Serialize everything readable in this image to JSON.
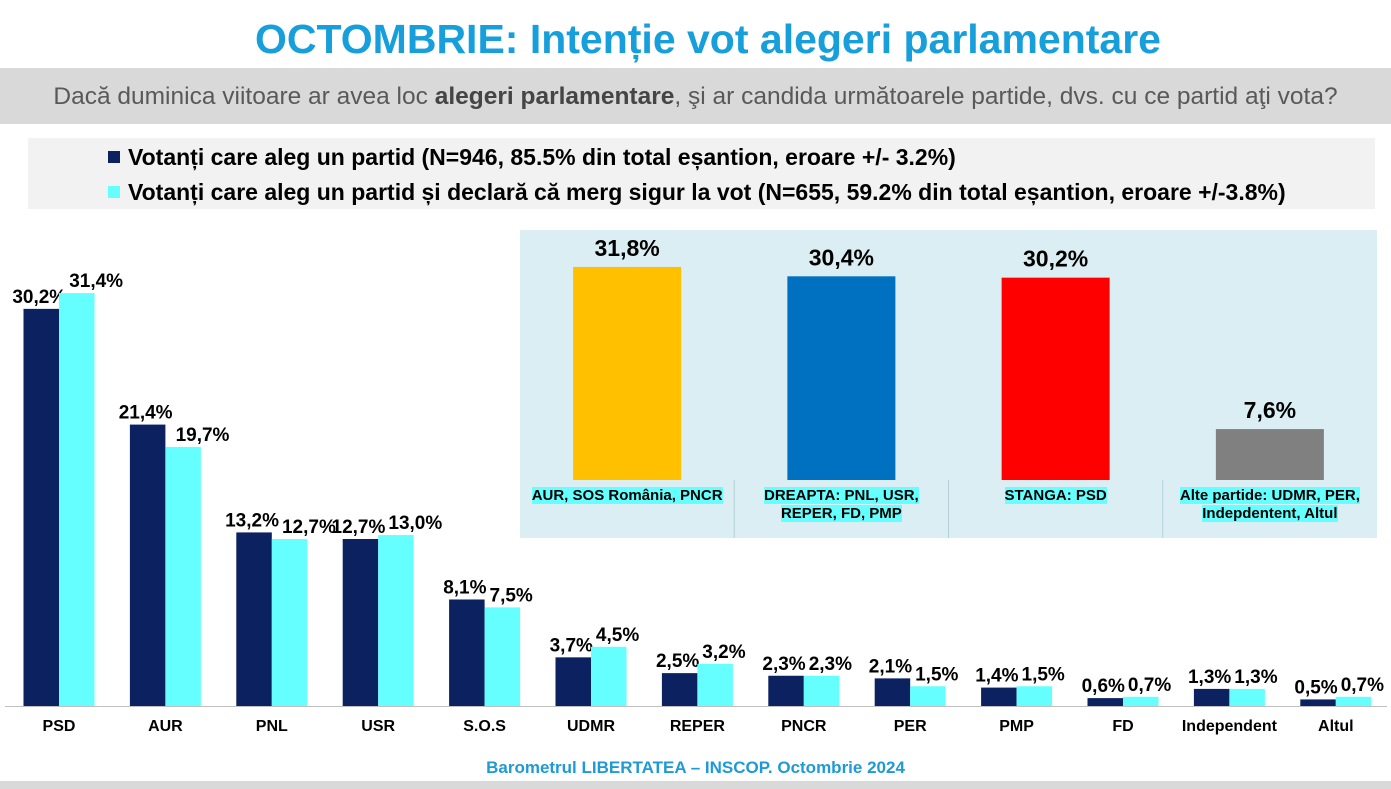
{
  "title": "OCTOMBRIE: Intenție vot alegeri parlamentare",
  "question": {
    "before": "Dacă duminica viitoare ar avea loc ",
    "bold": "alegeri parlamentare",
    "after": ", şi ar candida următoarele partide, dvs. cu ce partid aţi vota?"
  },
  "footer": "Barometrul LIBERTATEA – INSCOP. Octombrie 2024",
  "colors": {
    "title": "#169fdb",
    "footer": "#1f9ad6",
    "highlight": "#66ffff"
  },
  "chart_data": [
    {
      "type": "bar",
      "categories": [
        "PSD",
        "AUR",
        "PNL",
        "USR",
        "S.O.S",
        "UDMR",
        "REPER",
        "PNCR",
        "PER",
        "PMP",
        "FD",
        "Independent",
        "Altul"
      ],
      "series": [
        {
          "name": "Votanți care aleg un partid (N=946, 85.5% din total eșantion, eroare +/- 3.2%)",
          "color": "#0b2160",
          "values": [
            30.2,
            21.4,
            13.2,
            12.7,
            8.1,
            3.7,
            2.5,
            2.3,
            2.1,
            1.4,
            0.6,
            1.3,
            0.5
          ],
          "labels": [
            "30,2%",
            "21,4%",
            "13,2%",
            "12,7%",
            "8,1%",
            "3,7%",
            "2,5%",
            "2,3%",
            "2,1%",
            "1,4%",
            "0,6%",
            "1,3%",
            "0,5%"
          ]
        },
        {
          "name": "Votanți care aleg un partid și declară că merg sigur la vot (N=655, 59.2% din total eșantion, eroare +/-3.8%)",
          "color": "#66ffff",
          "values": [
            31.4,
            19.7,
            12.7,
            13.0,
            7.5,
            4.5,
            3.2,
            2.3,
            1.5,
            1.5,
            0.7,
            1.3,
            0.7
          ],
          "labels": [
            "31,4%",
            "19,7%",
            "12,7%",
            "13,0%",
            "7,5%",
            "4,5%",
            "3,2%",
            "2,3%",
            "1,5%",
            "1,5%",
            "0,7%",
            "1,3%",
            "0,7%"
          ]
        }
      ],
      "legend_position": "top",
      "grid": false
    },
    {
      "type": "bar",
      "categories": [
        "AUR, SOS România, PNCR",
        "DREAPTA: PNL, USR, REPER, FD, PMP",
        "STANGA: PSD",
        "Alte partide: UDMR, PER, Indepdentent, Altul"
      ],
      "values": [
        31.8,
        30.4,
        30.2,
        7.6
      ],
      "labels": [
        "31,8%",
        "30,4%",
        "30,2%",
        "7,6%"
      ],
      "colors": [
        "#ffc000",
        "#0070c0",
        "#ff0000",
        "#808080"
      ],
      "grid": false
    }
  ]
}
